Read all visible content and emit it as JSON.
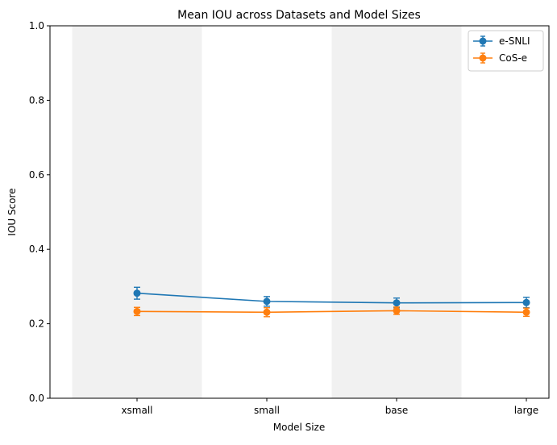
{
  "chart_data": {
    "type": "line",
    "title": "Mean IOU across Datasets and Model Sizes",
    "xlabel": "Model Size",
    "ylabel": "IOU Score",
    "categories": [
      "xsmall",
      "small",
      "base",
      "large"
    ],
    "ylim": [
      0.0,
      1.0
    ],
    "yticks": [
      "0.0",
      "0.2",
      "0.4",
      "0.6",
      "0.8",
      "1.0"
    ],
    "grid": false,
    "legend_position": "top-right",
    "shaded_categories": [
      "xsmall",
      "base"
    ],
    "series": [
      {
        "name": "e-SNLI",
        "color": "#1f77b4",
        "values": [
          0.282,
          0.26,
          0.256,
          0.257
        ],
        "errors": [
          0.016,
          0.013,
          0.013,
          0.014
        ]
      },
      {
        "name": "CoS-e",
        "color": "#ff7f0e",
        "values": [
          0.233,
          0.231,
          0.235,
          0.231
        ],
        "errors": [
          0.011,
          0.012,
          0.01,
          0.011
        ]
      }
    ]
  }
}
